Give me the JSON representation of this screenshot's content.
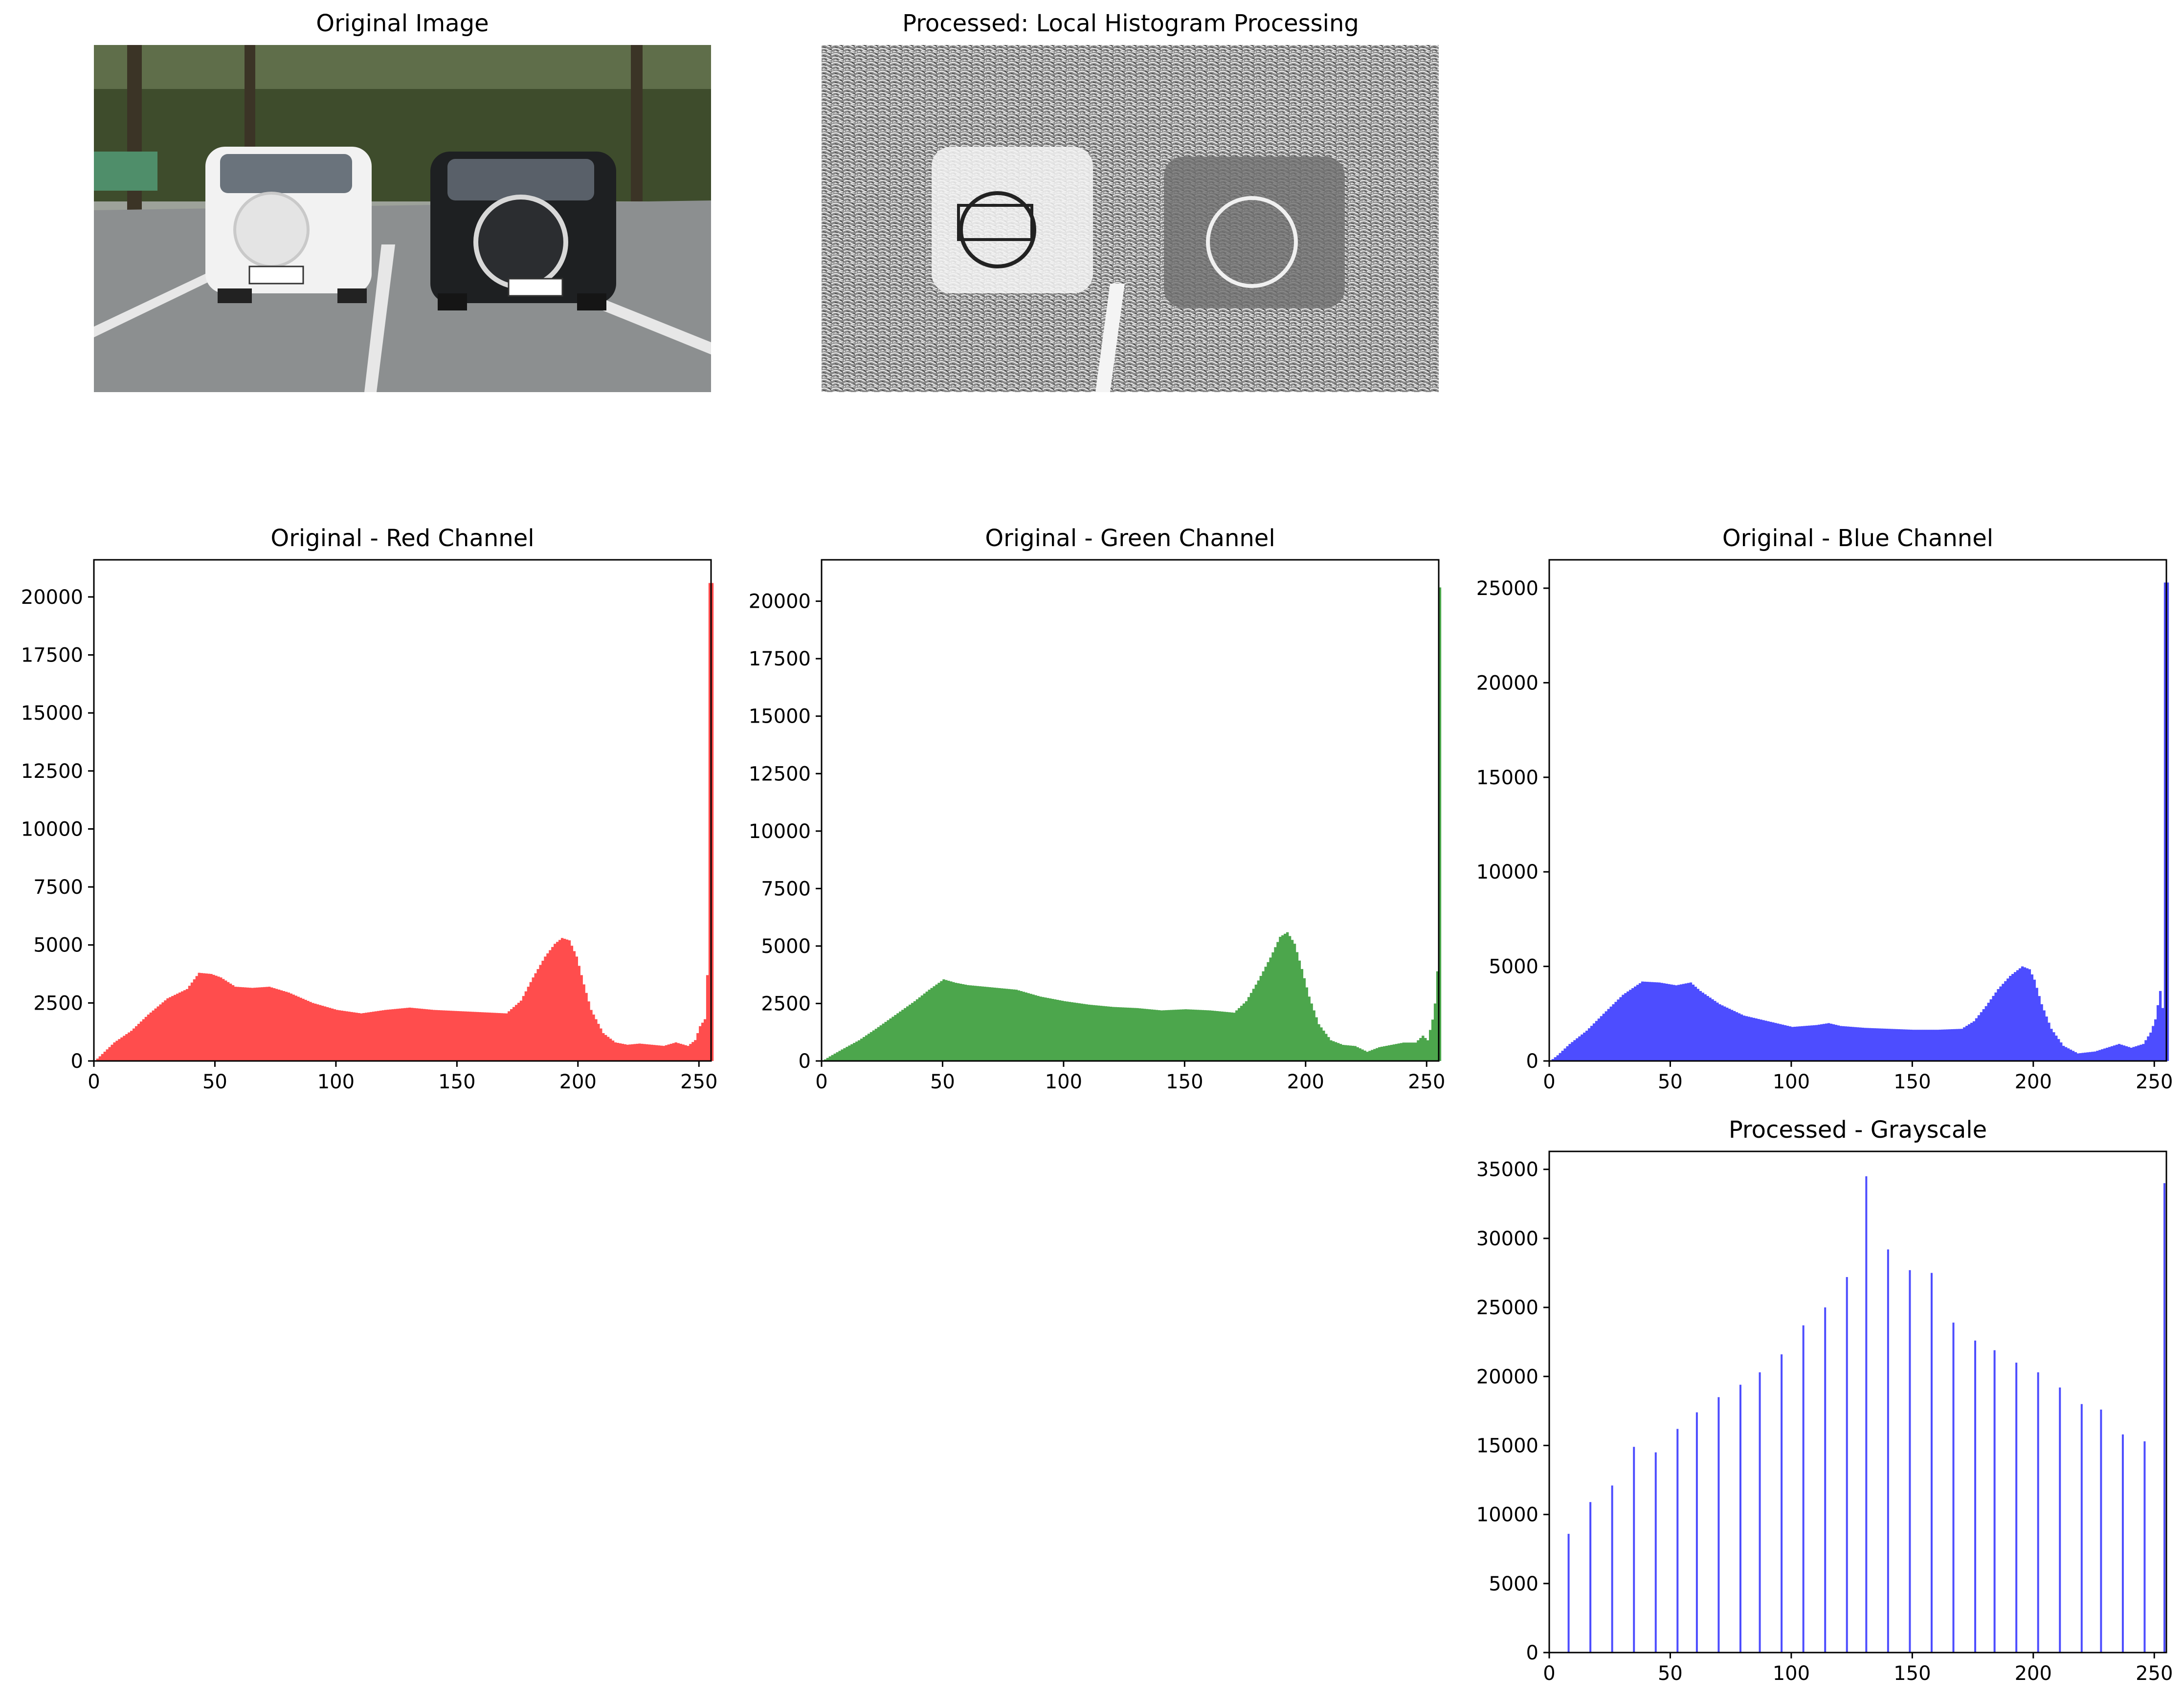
{
  "panels": {
    "original_image": {
      "title": "Original Image"
    },
    "processed_image": {
      "title": "Processed: Local Histogram Processing"
    }
  },
  "colors": {
    "red": "#ff4d4d",
    "green": "#4ca64c",
    "blue": "#4d4dff",
    "sky": "#dfe6e6",
    "foliage": "#3d4a2a",
    "pavement": "#8f9192",
    "white_car": "#eeeeee",
    "black_car": "#1e2022"
  },
  "chart_data": [
    {
      "id": "red",
      "type": "bar",
      "title": "Original - Red Channel",
      "xlim": [
        0,
        255
      ],
      "ylim": [
        0,
        21600
      ],
      "xticks": [
        0,
        50,
        100,
        150,
        200,
        250
      ],
      "yticks": [
        0,
        2500,
        5000,
        7500,
        10000,
        12500,
        15000,
        17500,
        20000
      ],
      "color": "#ff4d4d",
      "profile": [
        [
          0,
          0
        ],
        [
          3,
          300
        ],
        [
          8,
          800
        ],
        [
          15,
          1300
        ],
        [
          22,
          2000
        ],
        [
          30,
          2700
        ],
        [
          38,
          3100
        ],
        [
          43,
          3800
        ],
        [
          48,
          3750
        ],
        [
          52,
          3600
        ],
        [
          58,
          3200
        ],
        [
          65,
          3150
        ],
        [
          72,
          3200
        ],
        [
          80,
          2950
        ],
        [
          90,
          2500
        ],
        [
          100,
          2200
        ],
        [
          110,
          2050
        ],
        [
          120,
          2200
        ],
        [
          130,
          2300
        ],
        [
          140,
          2200
        ],
        [
          150,
          2150
        ],
        [
          160,
          2100
        ],
        [
          170,
          2050
        ],
        [
          176,
          2600
        ],
        [
          181,
          3600
        ],
        [
          186,
          4500
        ],
        [
          190,
          5050
        ],
        [
          193,
          5300
        ],
        [
          196,
          5200
        ],
        [
          199,
          4500
        ],
        [
          202,
          3300
        ],
        [
          205,
          2200
        ],
        [
          210,
          1200
        ],
        [
          215,
          800
        ],
        [
          220,
          700
        ],
        [
          225,
          750
        ],
        [
          230,
          700
        ],
        [
          235,
          650
        ],
        [
          240,
          800
        ],
        [
          245,
          650
        ],
        [
          248,
          900
        ],
        [
          250,
          1500
        ],
        [
          252,
          1800
        ],
        [
          253,
          3700
        ],
        [
          254,
          20600
        ],
        [
          255,
          20600
        ]
      ]
    },
    {
      "id": "green",
      "type": "bar",
      "title": "Original - Green Channel",
      "xlim": [
        0,
        255
      ],
      "ylim": [
        0,
        21800
      ],
      "xticks": [
        0,
        50,
        100,
        150,
        200,
        250
      ],
      "yticks": [
        0,
        2500,
        5000,
        7500,
        10000,
        12500,
        15000,
        17500,
        20000
      ],
      "color": "#4ca64c",
      "profile": [
        [
          0,
          0
        ],
        [
          3,
          200
        ],
        [
          8,
          500
        ],
        [
          15,
          900
        ],
        [
          22,
          1400
        ],
        [
          30,
          2000
        ],
        [
          38,
          2600
        ],
        [
          44,
          3100
        ],
        [
          50,
          3550
        ],
        [
          55,
          3400
        ],
        [
          60,
          3300
        ],
        [
          70,
          3200
        ],
        [
          80,
          3100
        ],
        [
          90,
          2800
        ],
        [
          100,
          2600
        ],
        [
          110,
          2450
        ],
        [
          120,
          2350
        ],
        [
          130,
          2300
        ],
        [
          140,
          2200
        ],
        [
          150,
          2250
        ],
        [
          160,
          2200
        ],
        [
          170,
          2100
        ],
        [
          175,
          2600
        ],
        [
          180,
          3500
        ],
        [
          185,
          4500
        ],
        [
          189,
          5400
        ],
        [
          192,
          5600
        ],
        [
          195,
          5100
        ],
        [
          198,
          4000
        ],
        [
          201,
          2800
        ],
        [
          205,
          1600
        ],
        [
          210,
          900
        ],
        [
          215,
          700
        ],
        [
          220,
          650
        ],
        [
          225,
          400
        ],
        [
          230,
          600
        ],
        [
          235,
          700
        ],
        [
          240,
          800
        ],
        [
          245,
          800
        ],
        [
          248,
          1100
        ],
        [
          250,
          900
        ],
        [
          252,
          1800
        ],
        [
          253,
          2500
        ],
        [
          254,
          3900
        ],
        [
          255,
          20600
        ]
      ]
    },
    {
      "id": "blue",
      "type": "bar",
      "title": "Original - Blue Channel",
      "xlim": [
        0,
        255
      ],
      "ylim": [
        0,
        26500
      ],
      "xticks": [
        0,
        50,
        100,
        150,
        200,
        250
      ],
      "yticks": [
        0,
        5000,
        10000,
        15000,
        20000,
        25000
      ],
      "color": "#4d4dff",
      "profile": [
        [
          0,
          0
        ],
        [
          3,
          300
        ],
        [
          8,
          900
        ],
        [
          15,
          1600
        ],
        [
          22,
          2500
        ],
        [
          30,
          3500
        ],
        [
          38,
          4200
        ],
        [
          45,
          4150
        ],
        [
          52,
          4000
        ],
        [
          58,
          4150
        ],
        [
          62,
          3700
        ],
        [
          70,
          3000
        ],
        [
          80,
          2400
        ],
        [
          90,
          2100
        ],
        [
          100,
          1800
        ],
        [
          110,
          1900
        ],
        [
          115,
          2000
        ],
        [
          120,
          1850
        ],
        [
          130,
          1750
        ],
        [
          140,
          1700
        ],
        [
          150,
          1650
        ],
        [
          160,
          1650
        ],
        [
          170,
          1700
        ],
        [
          175,
          2100
        ],
        [
          180,
          2900
        ],
        [
          185,
          3800
        ],
        [
          190,
          4500
        ],
        [
          195,
          5000
        ],
        [
          198,
          4850
        ],
        [
          200,
          4300
        ],
        [
          203,
          3000
        ],
        [
          207,
          1700
        ],
        [
          212,
          800
        ],
        [
          218,
          400
        ],
        [
          225,
          500
        ],
        [
          230,
          700
        ],
        [
          235,
          900
        ],
        [
          240,
          700
        ],
        [
          245,
          900
        ],
        [
          248,
          1500
        ],
        [
          250,
          2200
        ],
        [
          252,
          3700
        ],
        [
          253,
          2800
        ],
        [
          254,
          25300
        ],
        [
          255,
          25300
        ]
      ]
    },
    {
      "id": "gray",
      "type": "bar",
      "title": "Processed - Grayscale",
      "xlim": [
        0,
        255
      ],
      "ylim": [
        0,
        36300
      ],
      "xticks": [
        0,
        50,
        100,
        150,
        200,
        250
      ],
      "yticks": [
        0,
        5000,
        10000,
        15000,
        20000,
        25000,
        30000,
        35000
      ],
      "color": "#4d4dff",
      "spikes": [
        [
          8,
          8600
        ],
        [
          17,
          10900
        ],
        [
          26,
          12100
        ],
        [
          35,
          14900
        ],
        [
          44,
          14500
        ],
        [
          53,
          16200
        ],
        [
          61,
          17400
        ],
        [
          70,
          18500
        ],
        [
          79,
          19400
        ],
        [
          87,
          20300
        ],
        [
          96,
          21600
        ],
        [
          105,
          23700
        ],
        [
          114,
          25000
        ],
        [
          123,
          27200
        ],
        [
          131,
          34500
        ],
        [
          140,
          29200
        ],
        [
          149,
          27700
        ],
        [
          158,
          27500
        ],
        [
          167,
          23900
        ],
        [
          176,
          22600
        ],
        [
          184,
          21900
        ],
        [
          193,
          21000
        ],
        [
          202,
          20300
        ],
        [
          211,
          19200
        ],
        [
          220,
          18000
        ],
        [
          228,
          17600
        ],
        [
          237,
          15800
        ],
        [
          246,
          15300
        ],
        [
          255,
          34000
        ]
      ]
    }
  ]
}
